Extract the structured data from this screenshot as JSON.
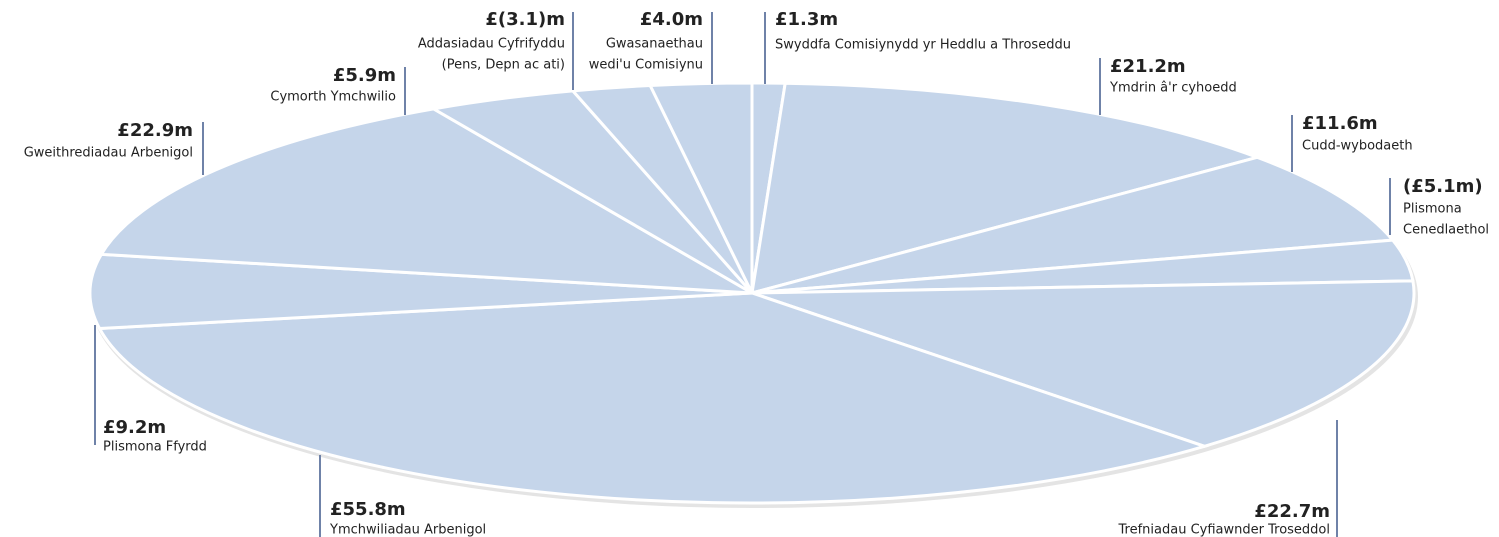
{
  "chart_data": {
    "type": "pie",
    "categories": [
      [
        "Swyddfa Comisiynydd yr Heddlu a Throseddu"
      ],
      [
        "Ymdrin â'r cyhoedd"
      ],
      [
        "Cudd-wybodaeth"
      ],
      [
        "Plismona",
        "Cenedlaethol"
      ],
      [
        "Trefniadau Cyfiawnder Troseddol"
      ],
      [
        "Ymchwiliadau Arbenigol"
      ],
      [
        "Plismona Ffyrdd"
      ],
      [
        "Gweithrediadau Arbenigol"
      ],
      [
        "Cymorth Ymchwilio"
      ],
      [
        "Addasiadau Cyfrifyddu",
        "(Pens, Depn ac ati)"
      ],
      [
        "Gwasanaethau",
        "wedi'u Comisiynu"
      ]
    ],
    "values": [
      1.3,
      21.2,
      11.6,
      -5.1,
      22.7,
      55.8,
      9.2,
      22.9,
      5.9,
      -3.1,
      4.0
    ],
    "value_labels": [
      "£1.3m",
      "£21.2m",
      "£11.6m",
      "(£5.1m)",
      "£22.7m",
      "£55.8m",
      "£9.2m",
      "£22.9m",
      "£5.9m",
      "£(3.1)m",
      "£4.0m"
    ],
    "color": "#c5d5ea"
  }
}
